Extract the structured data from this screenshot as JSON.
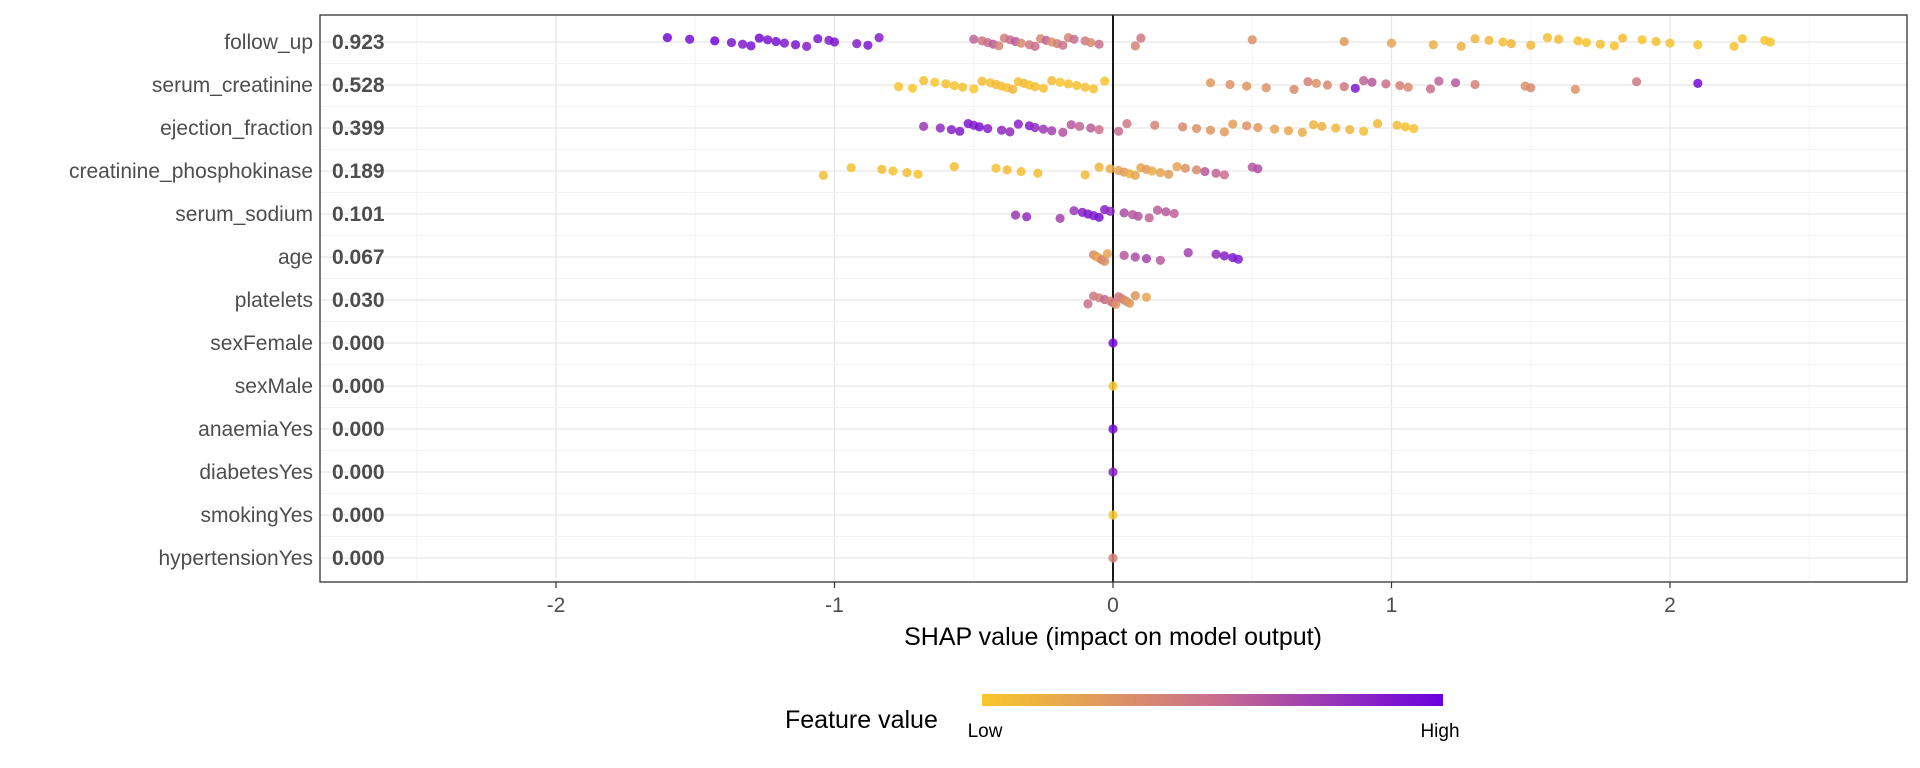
{
  "chart_data": {
    "type": "scatter",
    "subtype": "shap-beeswarm",
    "xlabel": "SHAP value (impact on model output)",
    "xlim": [
      -2.8,
      2.8
    ],
    "xticks": [
      -2,
      -1,
      0,
      1,
      2
    ],
    "grid": true,
    "colors": {
      "low": "#f9c72a",
      "mid": "#c96f8d",
      "high": "#6a00e0",
      "zero_line": "#000000",
      "grid_major": "#e6e6e6",
      "grid_minor": "#f3f3f3"
    },
    "legend": {
      "title": "Feature value",
      "low_label": "Low",
      "high_label": "High",
      "placement": "bottom"
    },
    "features": [
      {
        "name": "follow_up",
        "mean_abs": "0.923",
        "points": [
          [
            -1.6,
            0.95
          ],
          [
            -1.52,
            0.93
          ],
          [
            -1.43,
            0.97
          ],
          [
            -1.37,
            0.9
          ],
          [
            -1.33,
            0.88
          ],
          [
            -1.3,
            0.92
          ],
          [
            -1.27,
            0.95
          ],
          [
            -1.24,
            0.9
          ],
          [
            -1.21,
            0.93
          ],
          [
            -1.18,
            0.88
          ],
          [
            -1.14,
            0.91
          ],
          [
            -1.1,
            0.86
          ],
          [
            -1.06,
            0.9
          ],
          [
            -1.02,
            0.87
          ],
          [
            -1.0,
            0.9
          ],
          [
            -0.92,
            0.85
          ],
          [
            -0.88,
            0.9
          ],
          [
            -0.84,
            0.86
          ],
          [
            -0.5,
            0.55
          ],
          [
            -0.47,
            0.45
          ],
          [
            -0.45,
            0.5
          ],
          [
            -0.43,
            0.58
          ],
          [
            -0.41,
            0.38
          ],
          [
            -0.39,
            0.42
          ],
          [
            -0.37,
            0.5
          ],
          [
            -0.35,
            0.6
          ],
          [
            -0.33,
            0.35
          ],
          [
            -0.3,
            0.45
          ],
          [
            -0.28,
            0.5
          ],
          [
            -0.26,
            0.35
          ],
          [
            -0.24,
            0.55
          ],
          [
            -0.22,
            0.3
          ],
          [
            -0.2,
            0.42
          ],
          [
            -0.18,
            0.48
          ],
          [
            -0.16,
            0.4
          ],
          [
            -0.14,
            0.5
          ],
          [
            -0.1,
            0.45
          ],
          [
            -0.08,
            0.35
          ],
          [
            -0.05,
            0.5
          ],
          [
            0.08,
            0.4
          ],
          [
            0.1,
            0.45
          ],
          [
            0.5,
            0.3
          ],
          [
            0.83,
            0.25
          ],
          [
            1.0,
            0.2
          ],
          [
            1.15,
            0.15
          ],
          [
            1.25,
            0.12
          ],
          [
            1.3,
            0.1
          ],
          [
            1.35,
            0.08
          ],
          [
            1.4,
            0.05
          ],
          [
            1.43,
            0.1
          ],
          [
            1.5,
            0.08
          ],
          [
            1.56,
            0.05
          ],
          [
            1.6,
            0.06
          ],
          [
            1.67,
            0.04
          ],
          [
            1.7,
            0.02
          ],
          [
            1.75,
            0.05
          ],
          [
            1.8,
            0.03
          ],
          [
            1.83,
            0.06
          ],
          [
            1.9,
            0.02
          ],
          [
            1.95,
            0.04
          ],
          [
            2.0,
            0.03
          ],
          [
            2.1,
            0.02
          ],
          [
            2.23,
            0.03
          ],
          [
            2.26,
            0.02
          ],
          [
            2.34,
            0.0
          ],
          [
            2.36,
            0.02
          ]
        ]
      },
      {
        "name": "serum_creatinine",
        "mean_abs": "0.528",
        "points": [
          [
            -0.77,
            0.02
          ],
          [
            -0.72,
            0.0
          ],
          [
            -0.68,
            0.03
          ],
          [
            -0.64,
            0.01
          ],
          [
            -0.6,
            0.05
          ],
          [
            -0.57,
            0.02
          ],
          [
            -0.54,
            0.04
          ],
          [
            -0.5,
            0.0
          ],
          [
            -0.47,
            0.06
          ],
          [
            -0.44,
            0.03
          ],
          [
            -0.42,
            0.08
          ],
          [
            -0.4,
            0.05
          ],
          [
            -0.38,
            0.02
          ],
          [
            -0.36,
            0.1
          ],
          [
            -0.34,
            0.04
          ],
          [
            -0.32,
            0.07
          ],
          [
            -0.3,
            0.02
          ],
          [
            -0.28,
            0.05
          ],
          [
            -0.25,
            0.03
          ],
          [
            -0.22,
            0.06
          ],
          [
            -0.19,
            0.01
          ],
          [
            -0.16,
            0.04
          ],
          [
            -0.13,
            0.02
          ],
          [
            -0.1,
            0.05
          ],
          [
            -0.07,
            0.03
          ],
          [
            -0.03,
            0.02
          ],
          [
            0.35,
            0.25
          ],
          [
            0.42,
            0.3
          ],
          [
            0.48,
            0.28
          ],
          [
            0.55,
            0.3
          ],
          [
            0.65,
            0.35
          ],
          [
            0.7,
            0.4
          ],
          [
            0.73,
            0.3
          ],
          [
            0.77,
            0.35
          ],
          [
            0.83,
            0.45
          ],
          [
            0.87,
            0.9
          ],
          [
            0.9,
            0.55
          ],
          [
            0.93,
            0.6
          ],
          [
            0.98,
            0.5
          ],
          [
            1.03,
            0.4
          ],
          [
            1.06,
            0.35
          ],
          [
            1.14,
            0.5
          ],
          [
            1.17,
            0.55
          ],
          [
            1.23,
            0.6
          ],
          [
            1.3,
            0.4
          ],
          [
            1.48,
            0.3
          ],
          [
            1.5,
            0.35
          ],
          [
            1.66,
            0.3
          ],
          [
            1.88,
            0.45
          ],
          [
            2.1,
            0.95
          ]
        ]
      },
      {
        "name": "ejection_fraction",
        "mean_abs": "0.399",
        "points": [
          [
            -0.68,
            0.75
          ],
          [
            -0.62,
            0.8
          ],
          [
            -0.58,
            0.85
          ],
          [
            -0.55,
            0.88
          ],
          [
            -0.52,
            0.9
          ],
          [
            -0.5,
            0.87
          ],
          [
            -0.48,
            0.92
          ],
          [
            -0.45,
            0.85
          ],
          [
            -0.4,
            0.82
          ],
          [
            -0.37,
            0.8
          ],
          [
            -0.34,
            0.85
          ],
          [
            -0.3,
            0.88
          ],
          [
            -0.28,
            0.8
          ],
          [
            -0.25,
            0.75
          ],
          [
            -0.22,
            0.7
          ],
          [
            -0.18,
            0.62
          ],
          [
            -0.15,
            0.6
          ],
          [
            -0.12,
            0.55
          ],
          [
            -0.08,
            0.58
          ],
          [
            -0.05,
            0.5
          ],
          [
            0.02,
            0.52
          ],
          [
            0.05,
            0.45
          ],
          [
            0.15,
            0.4
          ],
          [
            0.25,
            0.35
          ],
          [
            0.3,
            0.3
          ],
          [
            0.35,
            0.28
          ],
          [
            0.4,
            0.25
          ],
          [
            0.43,
            0.22
          ],
          [
            0.48,
            0.3
          ],
          [
            0.52,
            0.25
          ],
          [
            0.58,
            0.2
          ],
          [
            0.63,
            0.18
          ],
          [
            0.68,
            0.15
          ],
          [
            0.72,
            0.1
          ],
          [
            0.75,
            0.12
          ],
          [
            0.8,
            0.08
          ],
          [
            0.85,
            0.1
          ],
          [
            0.9,
            0.05
          ],
          [
            0.95,
            0.08
          ],
          [
            1.02,
            0.06
          ],
          [
            1.05,
            0.04
          ],
          [
            1.08,
            0.03
          ]
        ]
      },
      {
        "name": "creatinine_phosphokinase",
        "mean_abs": "0.189",
        "points": [
          [
            -1.04,
            0.05
          ],
          [
            -0.94,
            0.04
          ],
          [
            -0.83,
            0.06
          ],
          [
            -0.79,
            0.03
          ],
          [
            -0.74,
            0.05
          ],
          [
            -0.7,
            0.02
          ],
          [
            -0.57,
            0.05
          ],
          [
            -0.42,
            0.03
          ],
          [
            -0.38,
            0.06
          ],
          [
            -0.33,
            0.04
          ],
          [
            -0.27,
            0.05
          ],
          [
            -0.1,
            0.08
          ],
          [
            -0.05,
            0.1
          ],
          [
            -0.01,
            0.15
          ],
          [
            0.02,
            0.2
          ],
          [
            0.04,
            0.25
          ],
          [
            0.06,
            0.12
          ],
          [
            0.08,
            0.2
          ],
          [
            0.1,
            0.18
          ],
          [
            0.12,
            0.25
          ],
          [
            0.14,
            0.15
          ],
          [
            0.17,
            0.2
          ],
          [
            0.2,
            0.25
          ],
          [
            0.23,
            0.2
          ],
          [
            0.26,
            0.3
          ],
          [
            0.3,
            0.35
          ],
          [
            0.33,
            0.6
          ],
          [
            0.37,
            0.55
          ],
          [
            0.4,
            0.5
          ],
          [
            0.5,
            0.6
          ],
          [
            0.52,
            0.65
          ]
        ]
      },
      {
        "name": "serum_sodium",
        "mean_abs": "0.101",
        "points": [
          [
            -0.35,
            0.75
          ],
          [
            -0.31,
            0.8
          ],
          [
            -0.19,
            0.7
          ],
          [
            -0.14,
            0.75
          ],
          [
            -0.11,
            0.85
          ],
          [
            -0.09,
            0.9
          ],
          [
            -0.07,
            0.88
          ],
          [
            -0.05,
            0.92
          ],
          [
            -0.03,
            0.85
          ],
          [
            -0.01,
            0.8
          ],
          [
            0.04,
            0.65
          ],
          [
            0.07,
            0.6
          ],
          [
            0.09,
            0.62
          ],
          [
            0.13,
            0.55
          ],
          [
            0.16,
            0.58
          ],
          [
            0.19,
            0.6
          ],
          [
            0.22,
            0.55
          ]
        ]
      },
      {
        "name": "age",
        "mean_abs": "0.067",
        "points": [
          [
            -0.07,
            0.35
          ],
          [
            -0.06,
            0.25
          ],
          [
            -0.05,
            0.15
          ],
          [
            -0.04,
            0.4
          ],
          [
            -0.03,
            0.3
          ],
          [
            -0.02,
            0.2
          ],
          [
            0.04,
            0.6
          ],
          [
            0.08,
            0.65
          ],
          [
            0.12,
            0.7
          ],
          [
            0.17,
            0.6
          ],
          [
            0.27,
            0.7
          ],
          [
            0.37,
            0.8
          ],
          [
            0.4,
            0.85
          ],
          [
            0.43,
            0.9
          ],
          [
            0.45,
            0.88
          ]
        ]
      },
      {
        "name": "platelets",
        "mean_abs": "0.030",
        "points": [
          [
            -0.09,
            0.5
          ],
          [
            -0.07,
            0.45
          ],
          [
            -0.05,
            0.4
          ],
          [
            -0.03,
            0.55
          ],
          [
            -0.01,
            0.35
          ],
          [
            0.0,
            0.5
          ],
          [
            0.01,
            0.3
          ],
          [
            0.02,
            0.45
          ],
          [
            0.03,
            0.4
          ],
          [
            0.04,
            0.35
          ],
          [
            0.05,
            0.3
          ],
          [
            0.06,
            0.25
          ],
          [
            0.08,
            0.28
          ],
          [
            0.12,
            0.2
          ]
        ]
      },
      {
        "name": "sexFemale",
        "mean_abs": "0.000",
        "points": [
          [
            0.0,
            0.95
          ]
        ]
      },
      {
        "name": "sexMale",
        "mean_abs": "0.000",
        "points": [
          [
            0.0,
            0.02
          ]
        ]
      },
      {
        "name": "anaemiaYes",
        "mean_abs": "0.000",
        "points": [
          [
            0.0,
            0.95
          ]
        ]
      },
      {
        "name": "diabetesYes",
        "mean_abs": "0.000",
        "points": [
          [
            0.0,
            0.85
          ]
        ]
      },
      {
        "name": "smokingYes",
        "mean_abs": "0.000",
        "points": [
          [
            0.0,
            0.02
          ]
        ]
      },
      {
        "name": "hypertensionYes",
        "mean_abs": "0.000",
        "points": [
          [
            0.0,
            0.4
          ]
        ]
      }
    ]
  }
}
